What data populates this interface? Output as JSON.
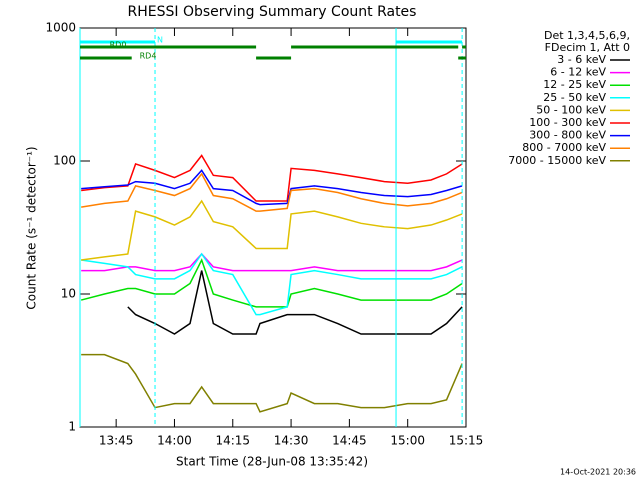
{
  "chart_data": {
    "type": "line",
    "title": "RHESSI Observing Summary Count Rates",
    "xlabel": "Start Time (28-Jun-08 13:35:42)",
    "ylabel": "Count Rate (s⁻¹ detector⁻¹)",
    "annotations": [
      "Det 1,3,4,5,6,9,",
      "FDecim 1, Att 0"
    ],
    "footer": "14-Oct-2021 20:36",
    "log_y": true,
    "xlim": [
      "13:35:42",
      "15:15"
    ],
    "ylim": [
      1,
      1000
    ],
    "yticks": [
      1,
      10,
      100,
      1000
    ],
    "xticks": [
      "13:45",
      "14:00",
      "14:15",
      "14:30",
      "14:45",
      "15:00",
      "15:15"
    ],
    "x": [
      "13:36",
      "13:42",
      "13:48",
      "13:50",
      "13:55",
      "14:00",
      "14:04",
      "14:07",
      "14:10",
      "14:15",
      "14:21",
      "14:22",
      "14:29",
      "14:30",
      "14:36",
      "14:42",
      "14:48",
      "14:54",
      "15:00",
      "15:06",
      "15:10",
      "15:14"
    ],
    "series": [
      {
        "name": "3 - 6 keV",
        "color": "#000000",
        "values": [
          null,
          null,
          8,
          7,
          6,
          5,
          6,
          15,
          6,
          5,
          5,
          6,
          7,
          7,
          7,
          6,
          5,
          5,
          5,
          5,
          6,
          8
        ]
      },
      {
        "name": "6 - 12 keV",
        "color": "#ff00ff",
        "values": [
          15,
          15,
          16,
          16,
          15,
          15,
          16,
          20,
          16,
          15,
          15,
          15,
          15,
          15,
          16,
          15,
          15,
          15,
          15,
          15,
          16,
          18
        ]
      },
      {
        "name": "12 - 25 keV",
        "color": "#00e000",
        "values": [
          9,
          10,
          11,
          11,
          10,
          10,
          12,
          18,
          10,
          9,
          8,
          8,
          8,
          10,
          11,
          10,
          9,
          9,
          9,
          9,
          10,
          12
        ]
      },
      {
        "name": "25 - 50 keV",
        "color": "#00ffff",
        "values": [
          18,
          17,
          16,
          14,
          13,
          13,
          15,
          20,
          15,
          14,
          7,
          7,
          8,
          14,
          15,
          14,
          13,
          13,
          13,
          13,
          14,
          16
        ]
      },
      {
        "name": "50 - 100 keV",
        "color": "#e0c000",
        "values": [
          18,
          19,
          20,
          42,
          38,
          33,
          38,
          50,
          35,
          32,
          22,
          22,
          22,
          40,
          42,
          38,
          34,
          32,
          31,
          33,
          36,
          40
        ]
      },
      {
        "name": "100 - 300 keV",
        "color": "#ff0000",
        "values": [
          60,
          63,
          65,
          95,
          85,
          75,
          85,
          110,
          78,
          75,
          50,
          50,
          50,
          88,
          85,
          80,
          75,
          70,
          68,
          72,
          80,
          95
        ]
      },
      {
        "name": "300 - 800 keV",
        "color": "#0000ff",
        "values": [
          62,
          64,
          66,
          70,
          68,
          62,
          68,
          85,
          62,
          60,
          48,
          47,
          48,
          62,
          65,
          62,
          58,
          55,
          54,
          56,
          60,
          65
        ]
      },
      {
        "name": "800 - 7000 keV",
        "color": "#ff8000",
        "values": [
          45,
          48,
          50,
          65,
          60,
          55,
          62,
          80,
          55,
          52,
          42,
          42,
          44,
          60,
          62,
          58,
          52,
          48,
          46,
          48,
          52,
          58
        ]
      },
      {
        "name": "7000 - 15000 keV",
        "color": "#808000",
        "values": [
          3.5,
          3.5,
          3,
          2.5,
          1.4,
          1.5,
          1.5,
          2,
          1.5,
          1.5,
          1.5,
          1.3,
          1.5,
          1.8,
          1.5,
          1.5,
          1.4,
          1.4,
          1.5,
          1.5,
          1.6,
          3
        ]
      }
    ],
    "flags": [
      {
        "name": "N",
        "color": "#00ffff",
        "intervals": [
          [
            "13:35:42",
            "13:55"
          ],
          [
            "14:57",
            "15:14"
          ]
        ]
      },
      {
        "name": "RD0",
        "color": "#008000",
        "intervals": [
          [
            "13:35:42",
            "14:21"
          ],
          [
            "14:30",
            "15:13"
          ],
          [
            "15:14",
            "15:15"
          ]
        ]
      },
      {
        "name": "RD4",
        "color": "#008000",
        "intervals": [
          [
            "13:35:42",
            "13:49"
          ],
          [
            "14:21",
            "14:30"
          ],
          [
            "15:13",
            "15:15"
          ]
        ]
      }
    ]
  }
}
